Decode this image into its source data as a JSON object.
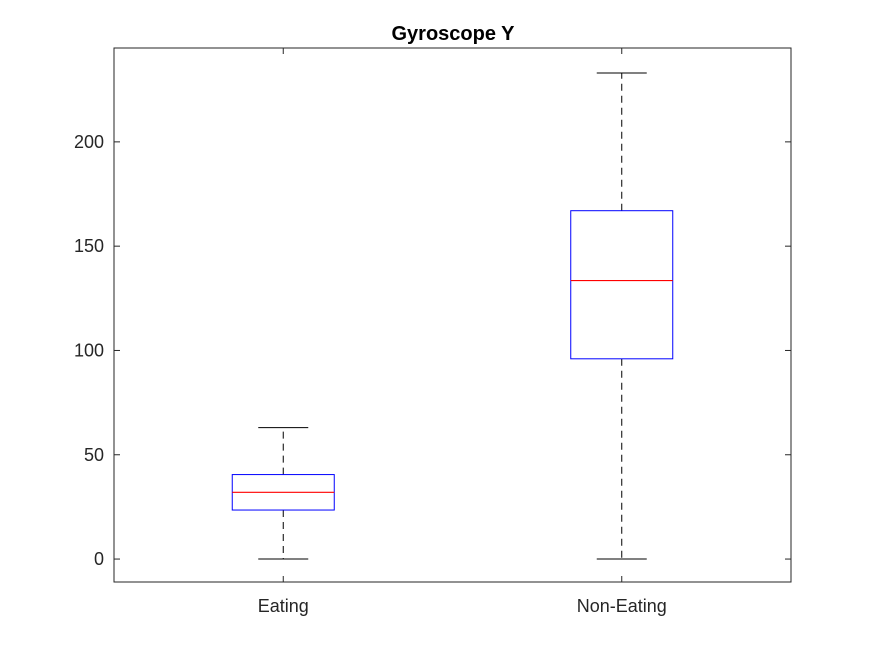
{
  "chart_data": {
    "type": "box",
    "title": "Gyroscope Y",
    "xlabel": "",
    "ylabel": "",
    "categories": [
      "Eating",
      "Non-Eating"
    ],
    "boxes": [
      {
        "name": "Eating",
        "whisker_low": 0,
        "q1": 23.5,
        "median": 32,
        "q3": 40.5,
        "whisker_high": 63
      },
      {
        "name": "Non-Eating",
        "whisker_low": 0,
        "q1": 96,
        "median": 133.5,
        "q3": 167,
        "whisker_high": 233
      }
    ],
    "ylim": [
      -11,
      245
    ],
    "yticks": [
      0,
      50,
      100,
      150,
      200
    ],
    "grid": false,
    "colors": {
      "box": "#0000ff",
      "median": "#ff0000",
      "whisker": "#000000",
      "axes": "#262626"
    }
  }
}
